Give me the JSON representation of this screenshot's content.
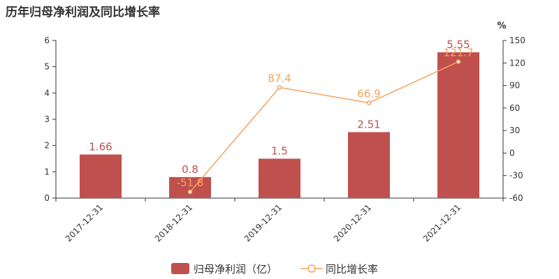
{
  "chart_data": {
    "type": "bar",
    "title": "历年归母净利润及同比增长率",
    "categories": [
      "2017-12-31",
      "2018-12-31",
      "2019-12-31",
      "2020-12-31",
      "2021-12-31"
    ],
    "series": [
      {
        "name": "归母净利润（亿）",
        "type": "bar",
        "axis": "left",
        "values": [
          1.66,
          0.8,
          1.5,
          2.51,
          5.55
        ],
        "labels": [
          "1.66",
          "0.8",
          "1.5",
          "2.51",
          "5.55"
        ]
      },
      {
        "name": "同比增长率",
        "type": "line",
        "axis": "right",
        "values": [
          null,
          -51.8,
          87.4,
          66.9,
          121.7
        ],
        "labels": [
          "",
          "-51.8",
          "87.4",
          "66.9",
          "121.7"
        ]
      }
    ],
    "y_left": {
      "ylim": [
        0,
        6
      ],
      "ticks": [
        "0",
        "1",
        "2",
        "3",
        "4",
        "5",
        "6"
      ]
    },
    "y_right": {
      "unit": "%",
      "ylim": [
        -60,
        150
      ],
      "ticks": [
        "-60",
        "-30",
        "0",
        "30",
        "60",
        "90",
        "120",
        "150"
      ]
    },
    "legend_position": "bottom-center",
    "grid": false,
    "colors": {
      "bar": "#c0504d",
      "line": "#f5a35c",
      "text": "#333333",
      "axis": "#333333"
    }
  }
}
